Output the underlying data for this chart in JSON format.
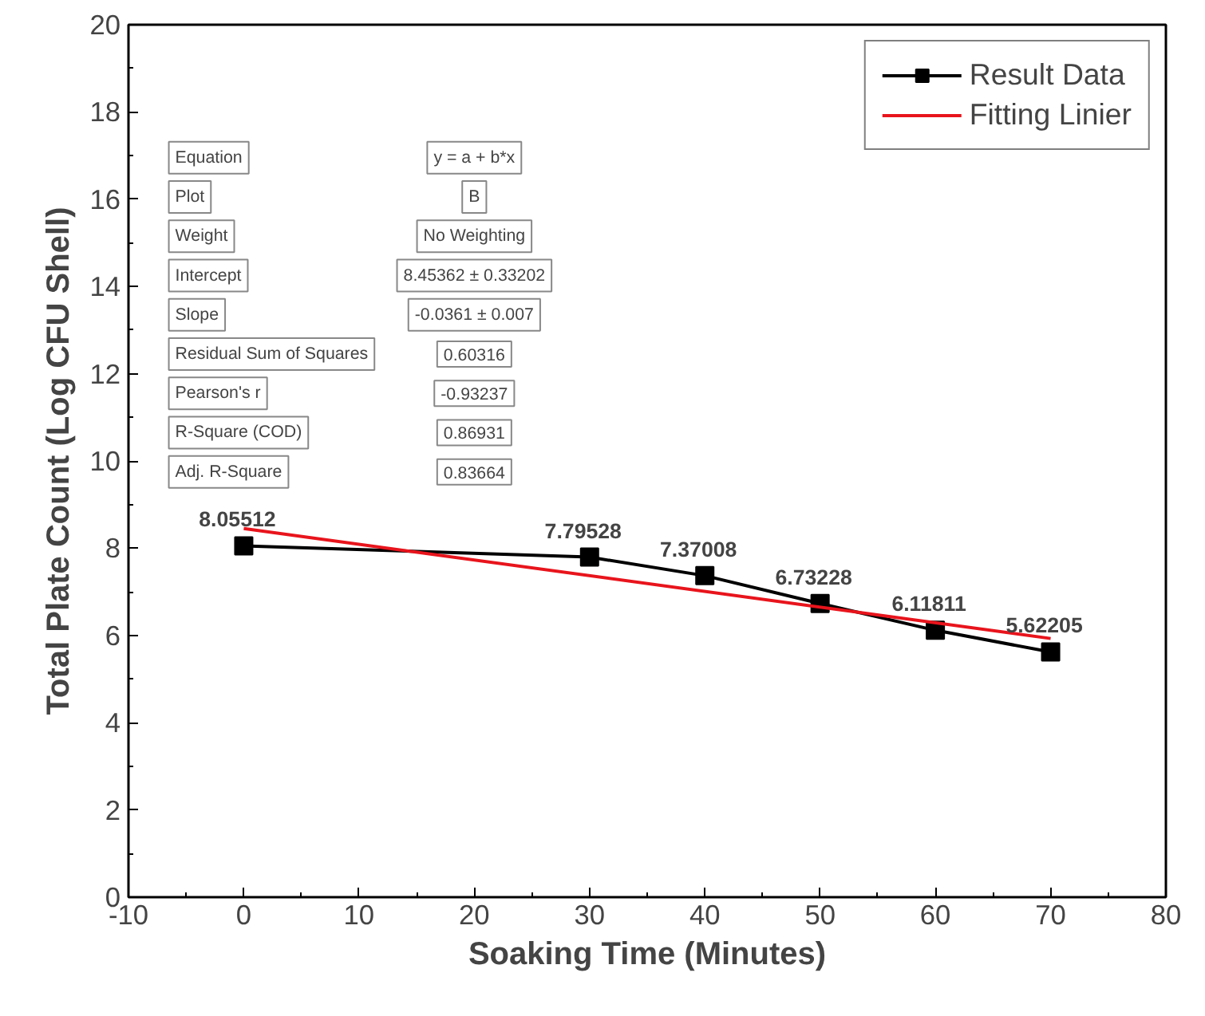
{
  "chart_data": {
    "type": "line",
    "xlabel": "Soaking Time (Minutes)",
    "ylabel": "Total Plate Count (Log CFU Shell)",
    "xlim": [
      -10,
      80
    ],
    "xticks": [
      -10,
      0,
      10,
      20,
      30,
      40,
      50,
      60,
      70,
      80
    ],
    "ylim": [
      0,
      20
    ],
    "yticks": [
      0,
      2,
      4,
      6,
      8,
      10,
      12,
      14,
      16,
      18,
      20
    ],
    "grid": false,
    "legend": "top right",
    "series": [
      {
        "name": "Result Data",
        "color": "#000000",
        "marker": "square",
        "data_labels": true,
        "x": [
          0,
          30,
          40,
          50,
          60,
          70
        ],
        "values": [
          8.05512,
          7.79528,
          7.37008,
          6.73228,
          6.11811,
          5.62205
        ]
      },
      {
        "name": "Fitting Linier",
        "color": "#e8141c",
        "type": "line",
        "marker": "none",
        "x": [
          0,
          70
        ],
        "values": [
          8.45,
          5.93
        ]
      }
    ],
    "annotations": [
      "Equation",
      "y = a + b*x",
      "Plot",
      "B",
      "Weight",
      "No Weighting",
      "Intercept",
      "8.45362 ± 0.33202",
      "Slope",
      "-0.0361 ± 0.007",
      "Residual Sum of Squares",
      "0.60316",
      "Pearson's r",
      "-0.93237",
      "R-Square (COD)",
      "0.86931",
      "Adj. R-Square",
      "0.83664"
    ]
  }
}
